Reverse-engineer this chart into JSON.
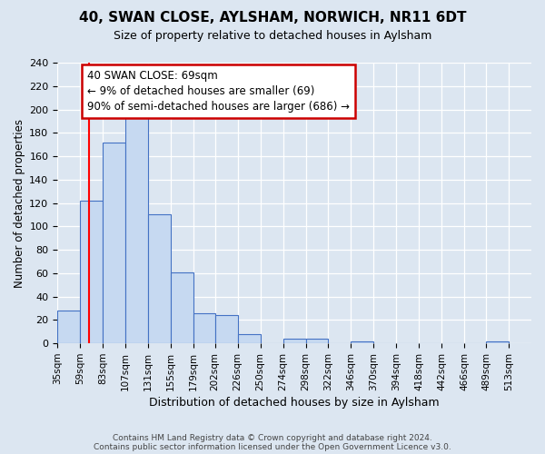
{
  "title": "40, SWAN CLOSE, AYLSHAM, NORWICH, NR11 6DT",
  "subtitle": "Size of property relative to detached houses in Aylsham",
  "xlabel": "Distribution of detached houses by size in Aylsham",
  "ylabel": "Number of detached properties",
  "bin_labels": [
    "35sqm",
    "59sqm",
    "83sqm",
    "107sqm",
    "131sqm",
    "155sqm",
    "179sqm",
    "202sqm",
    "226sqm",
    "250sqm",
    "274sqm",
    "298sqm",
    "322sqm",
    "346sqm",
    "370sqm",
    "394sqm",
    "418sqm",
    "442sqm",
    "466sqm",
    "489sqm",
    "513sqm"
  ],
  "bin_edges": [
    35,
    59,
    83,
    107,
    131,
    155,
    179,
    202,
    226,
    250,
    274,
    298,
    322,
    346,
    370,
    394,
    418,
    442,
    466,
    489,
    513
  ],
  "bar_heights": [
    28,
    122,
    172,
    198,
    110,
    61,
    26,
    24,
    8,
    0,
    4,
    4,
    0,
    2,
    0,
    0,
    0,
    0,
    0,
    2
  ],
  "bar_color": "#c6d9f1",
  "bar_edge_color": "#4472c4",
  "background_color": "#dce6f1",
  "plot_bg_color": "#dce6f1",
  "ylim": [
    0,
    240
  ],
  "yticks": [
    0,
    20,
    40,
    60,
    80,
    100,
    120,
    140,
    160,
    180,
    200,
    220,
    240
  ],
  "red_line_x": 69,
  "annotation_title": "40 SWAN CLOSE: 69sqm",
  "annotation_line1": "← 9% of detached houses are smaller (69)",
  "annotation_line2": "90% of semi-detached houses are larger (686) →",
  "annotation_box_color": "#ffffff",
  "annotation_box_edge": "#cc0000",
  "footer_line1": "Contains HM Land Registry data © Crown copyright and database right 2024.",
  "footer_line2": "Contains public sector information licensed under the Open Government Licence v3.0."
}
